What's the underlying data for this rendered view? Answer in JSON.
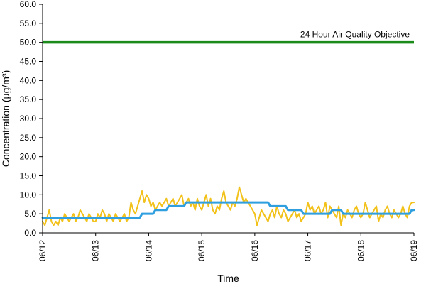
{
  "chart_data": {
    "type": "line",
    "title": "",
    "xlabel": "Time",
    "ylabel": "Concentration (μg/m³)",
    "ylim": [
      0,
      60
    ],
    "xlim": [
      "06/12",
      "06/19"
    ],
    "y_ticks": [
      "0.0",
      "5.0",
      "10.0",
      "15.0",
      "20.0",
      "25.0",
      "30.0",
      "35.0",
      "40.0",
      "45.0",
      "50.0",
      "55.0",
      "60.0"
    ],
    "x_ticks": [
      "06/12",
      "06/13",
      "06/14",
      "06/15",
      "06/16",
      "06/17",
      "06/18",
      "06/19"
    ],
    "grid": false,
    "legend": "none",
    "reference_line": {
      "label": "24 Hour Air Quality Objective",
      "value": 50,
      "color": "#1a8a1a"
    },
    "series": [
      {
        "style": "hourly",
        "color": "#f2c21b",
        "values": [
          3,
          2,
          4,
          6,
          3,
          2,
          3,
          2,
          4,
          3,
          5,
          4,
          3,
          4,
          5,
          3,
          4,
          6,
          5,
          4,
          3,
          5,
          4,
          3,
          3,
          5,
          4,
          6,
          5,
          3,
          5,
          4,
          3,
          5,
          4,
          3,
          4,
          5,
          3,
          4,
          8,
          6,
          5,
          7,
          9,
          11,
          8,
          10,
          9,
          7,
          8,
          6,
          7,
          8,
          7,
          8,
          9,
          7,
          8,
          9,
          7,
          8,
          9,
          10,
          7,
          8,
          9,
          7,
          8,
          6,
          9,
          7,
          6,
          8,
          10,
          7,
          9,
          6,
          5,
          7,
          6,
          9,
          11,
          8,
          7,
          6,
          8,
          7,
          9,
          12,
          10,
          8,
          9,
          8,
          7,
          6,
          5,
          2,
          4,
          6,
          5,
          4,
          3,
          5,
          6,
          4,
          7,
          5,
          4,
          6,
          5,
          3,
          4,
          5,
          6,
          4,
          5,
          3,
          4,
          5,
          8,
          6,
          7,
          5,
          6,
          7,
          5,
          6,
          8,
          4,
          7,
          6,
          5,
          4,
          7,
          2,
          5,
          4,
          6,
          5,
          4,
          6,
          7,
          5,
          4,
          5,
          8,
          6,
          4,
          5,
          6,
          7,
          3,
          5,
          4,
          6,
          7,
          5,
          4,
          6,
          5,
          4,
          5,
          7,
          5,
          4,
          7,
          8,
          8
        ]
      },
      {
        "style": "rolling-24h",
        "color": "#2f9fe0",
        "values": [
          4,
          4,
          4,
          4,
          4,
          4,
          4,
          4,
          4,
          4,
          4,
          4,
          4,
          4,
          4,
          4,
          4,
          4,
          4,
          4,
          4,
          4,
          4,
          4,
          4,
          4,
          4,
          4,
          4,
          4,
          4,
          4,
          4,
          4,
          4,
          4,
          4,
          4,
          4,
          4,
          4,
          4,
          4,
          4,
          4,
          5,
          5,
          5,
          5,
          5,
          5,
          6,
          6,
          6,
          6,
          6,
          6,
          7,
          7,
          7,
          7,
          7,
          7,
          7,
          7,
          8,
          8,
          8,
          8,
          8,
          8,
          8,
          8,
          8,
          8,
          8,
          8,
          8,
          8,
          8,
          8,
          8,
          8,
          8,
          8,
          8,
          8,
          8,
          8,
          8,
          8,
          8,
          8,
          8,
          8,
          8,
          8,
          8,
          8,
          8,
          8,
          8,
          8,
          7,
          7,
          7,
          7,
          7,
          7,
          7,
          7,
          6,
          6,
          6,
          6,
          6,
          6,
          6,
          5,
          5,
          5,
          5,
          5,
          5,
          5,
          5,
          5,
          5,
          5,
          5,
          5,
          6,
          6,
          6,
          6,
          6,
          5,
          5,
          5,
          5,
          5,
          5,
          5,
          5,
          5,
          5,
          5,
          5,
          5,
          5,
          5,
          5,
          5,
          5,
          5,
          5,
          5,
          5,
          5,
          5,
          5,
          5,
          5,
          5,
          5,
          5,
          5,
          6,
          6
        ]
      }
    ]
  }
}
